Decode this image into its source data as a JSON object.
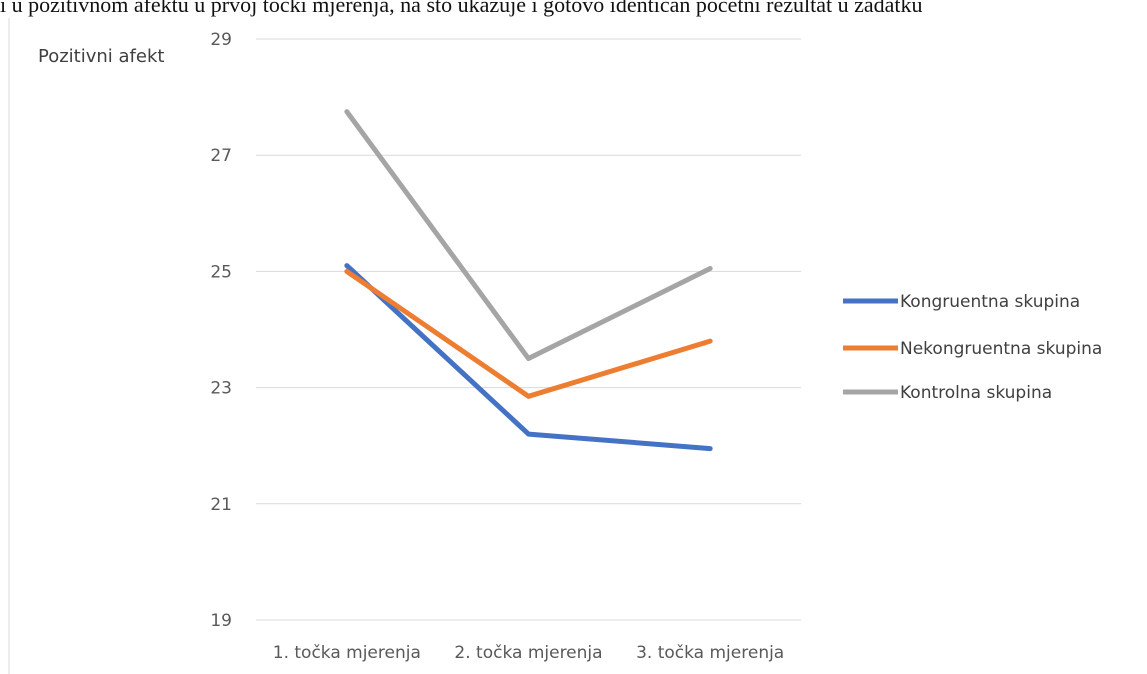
{
  "top_crop_text": "i u pozitivnom afektu u prvoj točki mjerenja, na što ukazuje i gotovo identičan početni rezultat u zadatku",
  "chart_data": {
    "type": "line",
    "title": "",
    "xlabel": "",
    "ylabel": "Pozitivni afekt",
    "categories": [
      "1. točka mjerenja",
      "2. točka mjerenja",
      "3. točka mjerenja"
    ],
    "ylim": [
      19,
      29
    ],
    "yticks": [
      19,
      21,
      23,
      25,
      27,
      29
    ],
    "grid": true,
    "legend_position": "right",
    "series": [
      {
        "name": "Kongruentna skupina",
        "color": "#4472C4",
        "values": [
          25.1,
          22.2,
          21.95
        ]
      },
      {
        "name": "Nekongruentna skupina",
        "color": "#ED7D31",
        "values": [
          25.0,
          22.85,
          23.8
        ]
      },
      {
        "name": "Kontrolna skupina",
        "color": "#A5A5A5",
        "values": [
          27.75,
          23.5,
          25.05
        ]
      }
    ]
  }
}
